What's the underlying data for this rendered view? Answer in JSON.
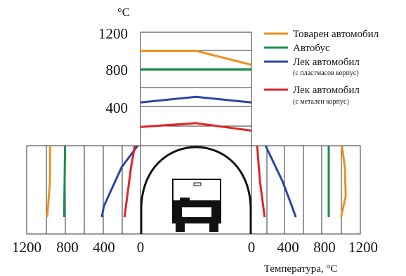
{
  "chart_data": {
    "type": "line",
    "unit_label": "°C",
    "xlabel": "Температура, °C",
    "top_scale": {
      "tick_labels": [
        "1200",
        "800",
        "400"
      ],
      "ylim": [
        0,
        1300
      ]
    },
    "side_scale": {
      "left_tick_labels": [
        "1200",
        "800",
        "400",
        "0"
      ],
      "right_tick_labels": [
        "0",
        "400",
        "800",
        "1200"
      ],
      "xlim": [
        0,
        1200
      ]
    },
    "legend": [
      {
        "key": "truck",
        "label": "Товарен автомобил",
        "note": "",
        "color": "#f0901e"
      },
      {
        "key": "bus",
        "label": "Автобус",
        "note": "",
        "color": "#15914a"
      },
      {
        "key": "plastic",
        "label": "Лек автомобил",
        "note": "(с пластмасов корпус)",
        "color": "#2c44a8"
      },
      {
        "key": "metal",
        "label": "Лек автомобил",
        "note": "(с метален корпус)",
        "color": "#e02426"
      }
    ],
    "series": [
      {
        "key": "truck",
        "ceiling": [
          [
            0,
            1010
          ],
          [
            0.5,
            1010
          ],
          [
            1,
            860
          ]
        ],
        "left_wall": [
          [
            0,
            960
          ],
          [
            0.5,
            960
          ],
          [
            1,
            990
          ]
        ],
        "right_wall": [
          [
            0,
            960
          ],
          [
            0.3,
            990
          ],
          [
            0.7,
            1000
          ],
          [
            1,
            950
          ]
        ]
      },
      {
        "key": "bus",
        "ceiling": [
          [
            0,
            810
          ],
          [
            1,
            810
          ]
        ],
        "left_wall": [
          [
            0,
            800
          ],
          [
            1,
            810
          ]
        ],
        "right_wall": [
          [
            0,
            820
          ],
          [
            1,
            820
          ]
        ]
      },
      {
        "key": "plastic",
        "ceiling": [
          [
            0,
            460
          ],
          [
            0.5,
            520
          ],
          [
            1,
            460
          ]
        ],
        "left_wall": [
          [
            0,
            30
          ],
          [
            0.3,
            200
          ],
          [
            0.85,
            390
          ],
          [
            1,
            410
          ]
        ],
        "right_wall": [
          [
            0,
            150
          ],
          [
            0.5,
            330
          ],
          [
            0.85,
            430
          ],
          [
            1,
            470
          ]
        ]
      },
      {
        "key": "metal",
        "ceiling": [
          [
            0,
            200
          ],
          [
            0.5,
            240
          ],
          [
            1,
            160
          ]
        ],
        "left_wall": [
          [
            0,
            60
          ],
          [
            0.3,
            100
          ],
          [
            1,
            170
          ]
        ],
        "right_wall": [
          [
            0,
            60
          ],
          [
            0.5,
            90
          ],
          [
            1,
            140
          ]
        ]
      }
    ]
  }
}
